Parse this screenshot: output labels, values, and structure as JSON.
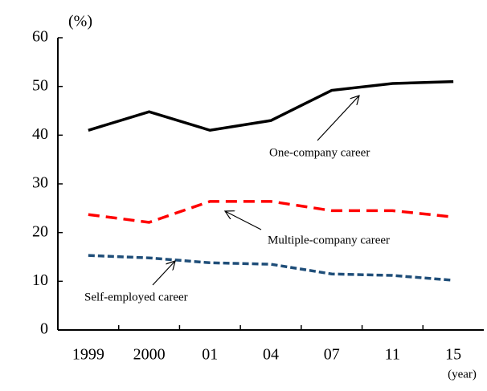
{
  "chart_data": {
    "type": "line",
    "y_unit_label": "(%)",
    "x_unit_label": "(year)",
    "categories": [
      "1999",
      "2000",
      "01",
      "04",
      "07",
      "11",
      "15"
    ],
    "series": [
      {
        "name": "One-company career",
        "color": "#000000",
        "dash": "solid",
        "values": [
          41,
          44.8,
          41,
          43,
          49.2,
          50.6,
          51
        ]
      },
      {
        "name": "Multiple-company career",
        "color": "#ff0000",
        "dash": "dashed",
        "values": [
          23.7,
          22.1,
          26.4,
          26.4,
          24.5,
          24.5,
          23.2
        ]
      },
      {
        "name": "Self-employed career",
        "color": "#1f4e79",
        "dash": "short-dashed",
        "values": [
          15.3,
          14.8,
          13.8,
          13.5,
          11.5,
          11.2,
          10.2
        ]
      }
    ],
    "ylim": [
      0,
      60
    ],
    "yticks": [
      0,
      10,
      20,
      30,
      40,
      50,
      60
    ],
    "grid": false
  }
}
